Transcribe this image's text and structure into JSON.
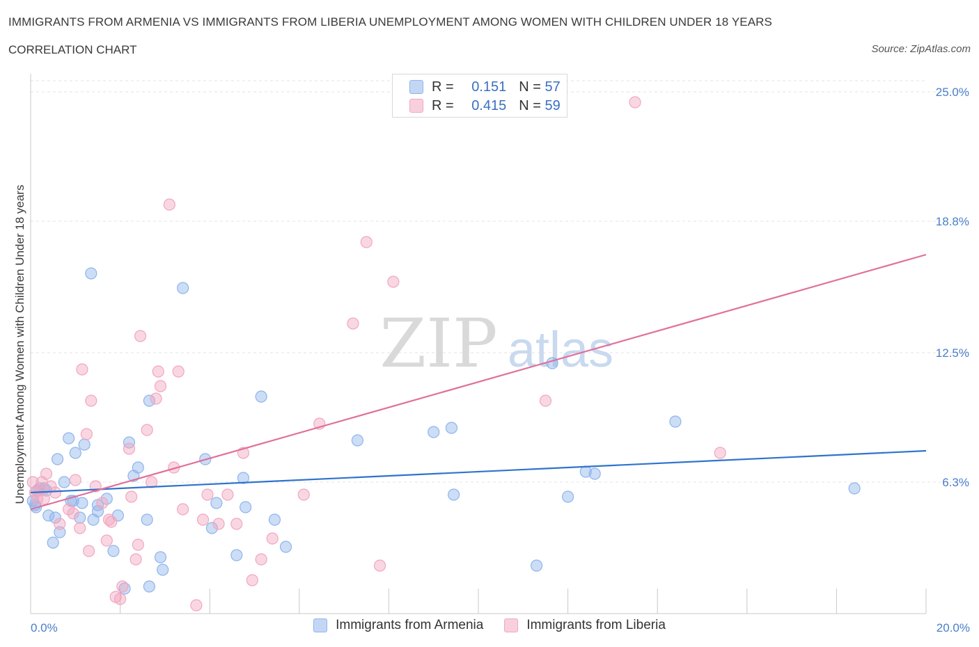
{
  "title": "IMMIGRANTS FROM ARMENIA VS IMMIGRANTS FROM LIBERIA UNEMPLOYMENT AMONG WOMEN WITH CHILDREN UNDER 18 YEARS",
  "subtitle": "CORRELATION CHART",
  "source": "Source: ZipAtlas.com",
  "watermark": {
    "zip": "ZIP",
    "atlas": "atlas"
  },
  "legend_top": {
    "rows": [
      {
        "r_label": "R = ",
        "r_value": "0.151",
        "n_label": "N = ",
        "n_value": "57",
        "color": "#8fb4ec"
      },
      {
        "r_label": "R = ",
        "r_value": "0.415",
        "n_label": "N = ",
        "n_value": "59",
        "color": "#f1a6bf"
      }
    ]
  },
  "legend_bottom": [
    "Immigrants from Armenia",
    "Immigrants from Liberia"
  ],
  "chart_data": {
    "type": "scatter",
    "xlabel": "",
    "ylabel": "Unemployment Among Women with Children Under 18 years",
    "xlim": [
      0,
      20
    ],
    "ylim": [
      0,
      25.0
    ],
    "x_tick_labels": [
      "0.0%",
      "20.0%"
    ],
    "y_ticks": [
      6.3,
      12.5,
      18.8,
      25.0
    ],
    "y_tick_labels": [
      "6.3%",
      "12.5%",
      "18.8%",
      "25.0%"
    ],
    "grid": true,
    "colors": {
      "armenia": "#8fb4ec",
      "armenia_line": "#2f73cc",
      "liberia": "#f1a6bf",
      "liberia_line": "#e0709a"
    },
    "series": [
      {
        "name": "Immigrants from Armenia",
        "trend": {
          "x": [
            0,
            20
          ],
          "y": [
            5.8,
            7.8
          ]
        },
        "points": [
          [
            0.1,
            5.2
          ],
          [
            0.15,
            5.9
          ],
          [
            0.2,
            6.0
          ],
          [
            0.3,
            6.0
          ],
          [
            0.4,
            4.7
          ],
          [
            0.5,
            3.4
          ],
          [
            0.55,
            4.6
          ],
          [
            0.6,
            7.4
          ],
          [
            0.65,
            3.9
          ],
          [
            0.75,
            6.3
          ],
          [
            0.85,
            8.4
          ],
          [
            0.9,
            5.4
          ],
          [
            0.95,
            5.4
          ],
          [
            1.0,
            7.7
          ],
          [
            1.1,
            4.6
          ],
          [
            1.15,
            5.3
          ],
          [
            1.2,
            8.1
          ],
          [
            1.35,
            16.3
          ],
          [
            1.4,
            4.5
          ],
          [
            1.5,
            4.9
          ],
          [
            1.5,
            5.2
          ],
          [
            1.7,
            5.5
          ],
          [
            1.85,
            3.0
          ],
          [
            1.95,
            4.7
          ],
          [
            2.1,
            1.2
          ],
          [
            2.2,
            8.2
          ],
          [
            2.3,
            6.6
          ],
          [
            2.4,
            7.0
          ],
          [
            2.6,
            4.5
          ],
          [
            2.65,
            10.2
          ],
          [
            2.65,
            1.3
          ],
          [
            2.9,
            2.7
          ],
          [
            2.95,
            2.1
          ],
          [
            3.4,
            15.6
          ],
          [
            3.9,
            7.4
          ],
          [
            4.05,
            4.1
          ],
          [
            4.15,
            5.3
          ],
          [
            4.6,
            2.8
          ],
          [
            4.75,
            6.5
          ],
          [
            4.8,
            5.1
          ],
          [
            5.15,
            10.4
          ],
          [
            5.45,
            4.5
          ],
          [
            5.7,
            3.2
          ],
          [
            7.3,
            8.3
          ],
          [
            9.0,
            8.7
          ],
          [
            9.4,
            8.9
          ],
          [
            9.45,
            5.7
          ],
          [
            11.3,
            2.3
          ],
          [
            11.65,
            12.0
          ],
          [
            12.0,
            5.6
          ],
          [
            12.4,
            6.8
          ],
          [
            12.6,
            6.7
          ],
          [
            14.4,
            9.2
          ],
          [
            18.4,
            6.0
          ],
          [
            0.05,
            5.4
          ],
          [
            0.35,
            5.9
          ],
          [
            0.12,
            5.1
          ]
        ]
      },
      {
        "name": "Immigrants from Liberia",
        "trend": {
          "x": [
            0,
            20
          ],
          "y": [
            5.0,
            17.2
          ]
        },
        "points": [
          [
            0.05,
            6.3
          ],
          [
            0.1,
            5.8
          ],
          [
            0.2,
            5.9
          ],
          [
            0.25,
            6.3
          ],
          [
            0.3,
            5.5
          ],
          [
            0.35,
            6.7
          ],
          [
            0.45,
            6.1
          ],
          [
            0.55,
            5.8
          ],
          [
            0.65,
            4.3
          ],
          [
            0.85,
            5.0
          ],
          [
            0.95,
            4.8
          ],
          [
            1.0,
            6.4
          ],
          [
            1.1,
            4.1
          ],
          [
            1.15,
            11.7
          ],
          [
            1.25,
            8.6
          ],
          [
            1.3,
            3.0
          ],
          [
            1.35,
            10.2
          ],
          [
            1.45,
            6.1
          ],
          [
            1.6,
            5.3
          ],
          [
            1.7,
            3.5
          ],
          [
            1.75,
            4.5
          ],
          [
            1.8,
            4.4
          ],
          [
            1.9,
            0.8
          ],
          [
            2.0,
            0.7
          ],
          [
            2.05,
            1.3
          ],
          [
            2.2,
            7.9
          ],
          [
            2.25,
            5.6
          ],
          [
            2.35,
            2.6
          ],
          [
            2.4,
            3.3
          ],
          [
            2.45,
            13.3
          ],
          [
            2.6,
            8.8
          ],
          [
            2.7,
            6.3
          ],
          [
            2.8,
            10.3
          ],
          [
            2.85,
            11.6
          ],
          [
            2.9,
            10.9
          ],
          [
            3.1,
            19.6
          ],
          [
            3.2,
            7.0
          ],
          [
            3.3,
            11.6
          ],
          [
            3.4,
            5.0
          ],
          [
            3.7,
            0.4
          ],
          [
            3.85,
            4.5
          ],
          [
            3.95,
            5.7
          ],
          [
            4.2,
            4.3
          ],
          [
            4.4,
            5.7
          ],
          [
            4.6,
            4.3
          ],
          [
            4.75,
            7.7
          ],
          [
            4.95,
            1.6
          ],
          [
            5.15,
            2.6
          ],
          [
            5.4,
            3.6
          ],
          [
            6.1,
            5.7
          ],
          [
            6.45,
            9.1
          ],
          [
            7.2,
            13.9
          ],
          [
            7.5,
            17.8
          ],
          [
            7.8,
            2.3
          ],
          [
            8.1,
            15.9
          ],
          [
            11.5,
            10.2
          ],
          [
            13.5,
            24.5
          ],
          [
            15.4,
            7.7
          ],
          [
            0.15,
            5.5
          ]
        ]
      }
    ]
  }
}
